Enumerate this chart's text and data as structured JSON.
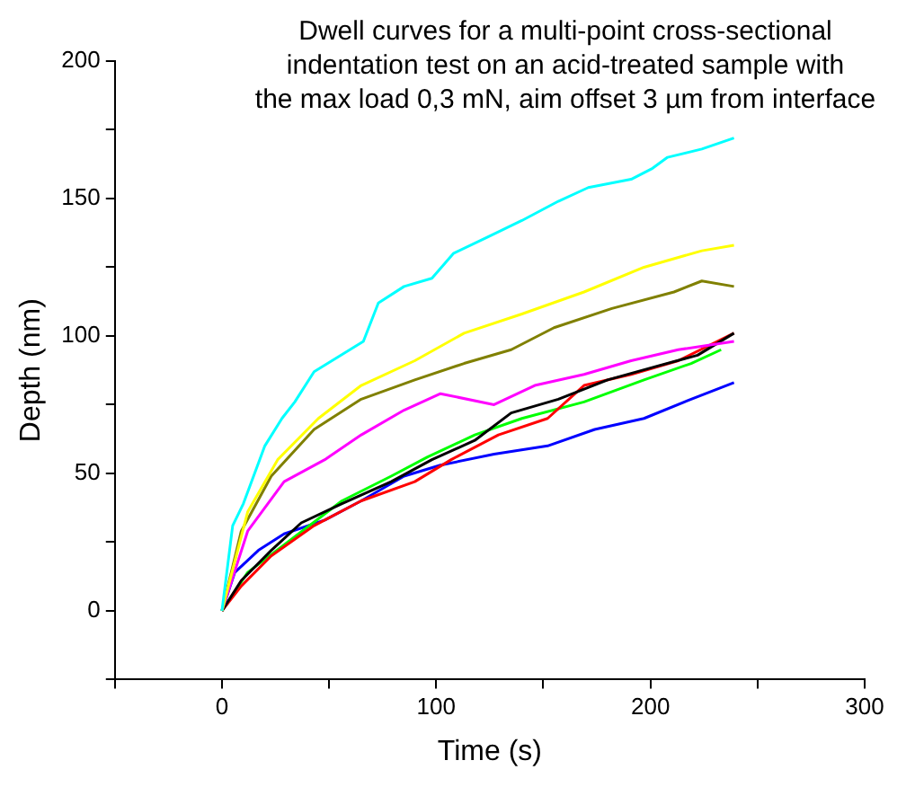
{
  "chart_data": {
    "type": "line",
    "title": "Dwell curves for a  multi-point cross-sectional\nindentation test on an acid-treated sample with\nthe max load 0,3 mN, aim offset 3 µm from interface",
    "xlabel": "Time (s)",
    "ylabel": "Depth (nm)",
    "xlim": [
      -50,
      300
    ],
    "ylim": [
      -25,
      200
    ],
    "xticks": [
      {
        "value": -50,
        "label": null
      },
      0,
      {
        "value": 50,
        "label": null
      },
      100,
      {
        "value": 150,
        "label": null
      },
      200,
      {
        "value": 250,
        "label": null
      },
      300
    ],
    "yticks": [
      {
        "value": -25,
        "label": null
      },
      0,
      {
        "value": 25,
        "label": null
      },
      50,
      {
        "value": 75,
        "label": null
      },
      100,
      {
        "value": 125,
        "label": null
      },
      150,
      {
        "value": 175,
        "label": null
      },
      200
    ],
    "grid": false,
    "legend": false,
    "marker": "none",
    "line_style": "solid",
    "series": [
      {
        "color": "#00ffff",
        "x": [
          0,
          5,
          10,
          20,
          28,
          34,
          43,
          66,
          73,
          85,
          98,
          108,
          124,
          140,
          157,
          171,
          191,
          201,
          208,
          224,
          239
        ],
        "values": [
          0,
          31,
          39,
          60,
          70,
          76,
          87,
          98,
          112,
          118,
          121,
          130,
          136,
          142,
          149,
          154,
          157,
          161,
          165,
          168,
          172
        ]
      },
      {
        "color": "#ffff00",
        "x": [
          0,
          12,
          26,
          45,
          65,
          90,
          113,
          140,
          169,
          197,
          224,
          239
        ],
        "values": [
          0,
          36,
          55,
          70,
          82,
          91,
          101,
          108,
          116,
          125,
          131,
          133
        ]
      },
      {
        "color": "#808000",
        "x": [
          0,
          9,
          23,
          43,
          65,
          90,
          113,
          135,
          155,
          182,
          211,
          224,
          239
        ],
        "values": [
          0,
          29,
          49,
          66,
          77,
          84,
          90,
          95,
          103,
          110,
          116,
          120,
          118
        ]
      },
      {
        "color": "#ff00ff",
        "x": [
          0,
          12,
          29,
          48,
          65,
          85,
          102,
          127,
          146,
          169,
          191,
          213,
          239
        ],
        "values": [
          0,
          29,
          47,
          55,
          64,
          73,
          79,
          75,
          82,
          86,
          91,
          95,
          98
        ]
      },
      {
        "color": "#000000",
        "x": [
          0,
          9,
          23,
          37,
          56,
          79,
          98,
          118,
          135,
          157,
          180,
          203,
          222,
          239
        ],
        "values": [
          0,
          11,
          22,
          32,
          39,
          47,
          55,
          62,
          72,
          77,
          84,
          89,
          93,
          101
        ]
      },
      {
        "color": "#ff0000",
        "x": [
          0,
          9,
          23,
          43,
          65,
          90,
          107,
          129,
          152,
          169,
          191,
          213,
          239
        ],
        "values": [
          0,
          9,
          20,
          31,
          40,
          47,
          55,
          64,
          70,
          82,
          86,
          91,
          101
        ]
      },
      {
        "color": "#00ff00",
        "x": [
          0,
          12,
          29,
          56,
          79,
          96,
          118,
          140,
          169,
          197,
          219,
          233
        ],
        "values": [
          0,
          14,
          24,
          40,
          49,
          56,
          64,
          70,
          76,
          84,
          90,
          95
        ]
      },
      {
        "color": "#0000ff",
        "x": [
          0,
          6,
          17,
          29,
          48,
          65,
          85,
          102,
          127,
          152,
          174,
          197,
          219,
          239
        ],
        "values": [
          0,
          14,
          22,
          28,
          33,
          40,
          49,
          53,
          57,
          60,
          66,
          70,
          77,
          83
        ]
      }
    ]
  }
}
